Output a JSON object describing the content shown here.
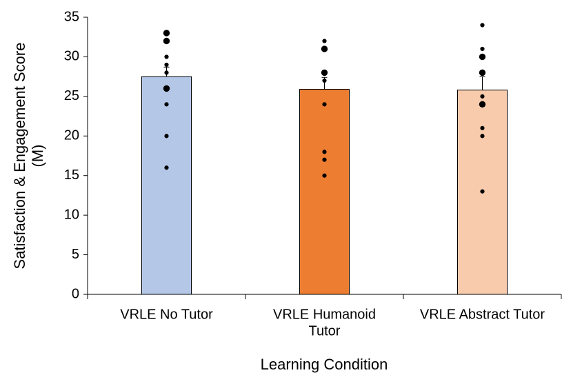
{
  "chart_data": {
    "type": "bar",
    "x_label": "Learning Condition",
    "y_label": "Satisfaction & Engagement Score",
    "y_label_unit": "(M)",
    "categories": [
      [
        "VRLE No Tutor"
      ],
      [
        "VRLE Humanoid",
        "Tutor"
      ],
      [
        "VRLE Abstract Tutor"
      ]
    ],
    "values": [
      27.5,
      25.9,
      25.8
    ],
    "errors": [
      1.2,
      1.5,
      1.7
    ],
    "colors": [
      "#b4c7e7",
      "#ed7d31",
      "#f8cbad"
    ],
    "points": [
      {
        "values": [
          33,
          32,
          30,
          29,
          28,
          26,
          24,
          20,
          16
        ],
        "counts": [
          2,
          2,
          1,
          1,
          1,
          2,
          1,
          1,
          1
        ]
      },
      {
        "values": [
          32,
          31,
          28,
          27,
          24,
          18,
          17,
          15
        ],
        "counts": [
          1,
          2,
          2,
          1,
          1,
          1,
          1,
          1
        ]
      },
      {
        "values": [
          34,
          31,
          30,
          28,
          25,
          24,
          21,
          20,
          13
        ],
        "counts": [
          1,
          1,
          2,
          2,
          1,
          2,
          1,
          1,
          1
        ]
      }
    ],
    "ylim": [
      0,
      35
    ],
    "yticks": [
      0,
      5,
      10,
      15,
      20,
      25,
      30,
      35
    ]
  }
}
